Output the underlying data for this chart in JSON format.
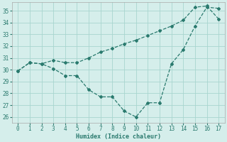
{
  "xlabel": "Humidex (Indice chaleur)",
  "background_color": "#d5eeeb",
  "grid_color": "#a8d5cf",
  "line_color": "#2a7a6e",
  "x_wavy": [
    0,
    1,
    2,
    3,
    4,
    5,
    6,
    7,
    8,
    9,
    10,
    11,
    12,
    13,
    14,
    15,
    16,
    17
  ],
  "y_wavy": [
    29.9,
    30.6,
    30.5,
    30.1,
    29.5,
    29.5,
    28.3,
    27.7,
    27.7,
    26.5,
    26.0,
    27.2,
    27.2,
    30.5,
    31.7,
    33.7,
    35.3,
    35.2
  ],
  "x_linear": [
    0,
    1,
    2,
    3,
    4,
    5,
    6,
    7,
    8,
    9,
    10,
    11,
    12,
    13,
    14,
    15,
    16,
    17
  ],
  "y_linear": [
    29.9,
    30.6,
    30.5,
    30.8,
    30.6,
    30.6,
    31.0,
    31.5,
    31.8,
    32.2,
    32.5,
    32.9,
    33.3,
    33.7,
    34.2,
    35.3,
    35.4,
    34.3
  ],
  "xlim": [
    -0.5,
    17.5
  ],
  "ylim": [
    25.5,
    35.7
  ],
  "yticks": [
    26,
    27,
    28,
    29,
    30,
    31,
    32,
    33,
    34,
    35
  ],
  "xticks": [
    0,
    1,
    2,
    3,
    4,
    5,
    6,
    7,
    8,
    9,
    10,
    11,
    12,
    13,
    14,
    15,
    16,
    17
  ],
  "figsize": [
    3.2,
    2.0
  ],
  "dpi": 100
}
